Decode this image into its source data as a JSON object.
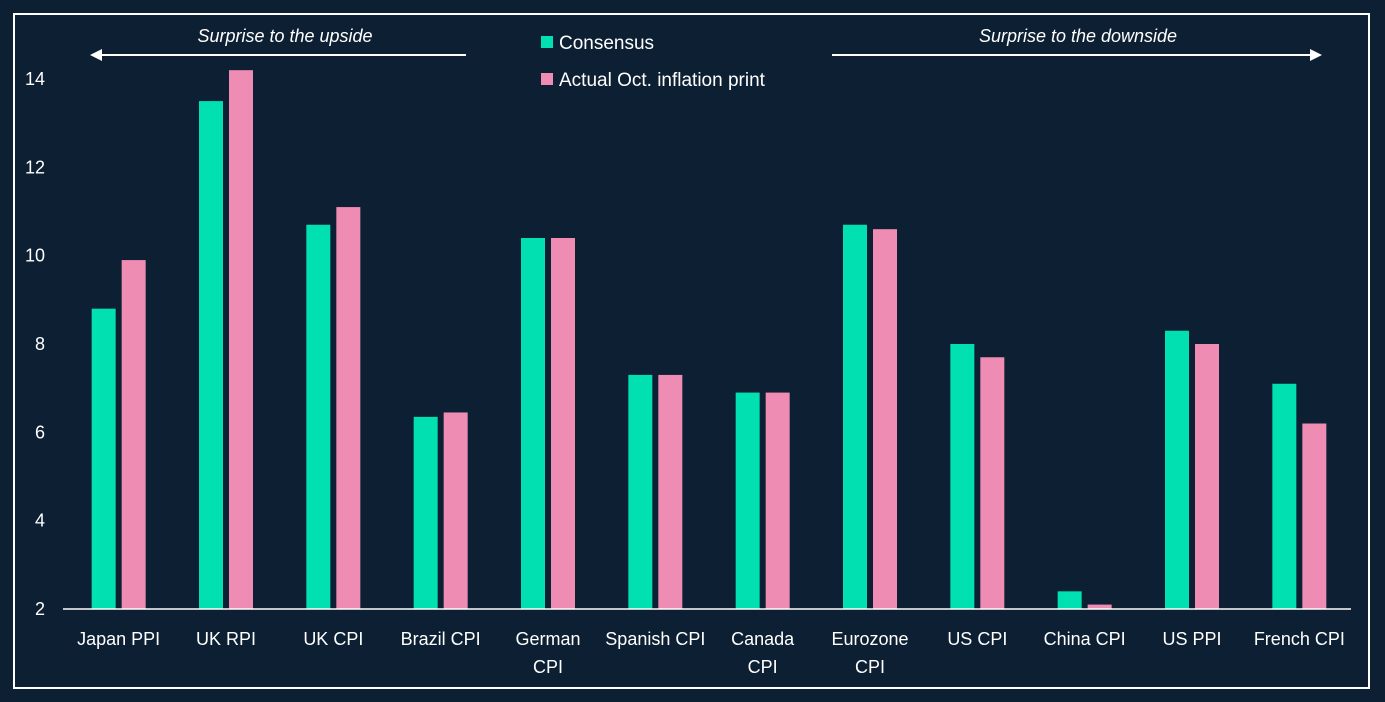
{
  "chart_data": {
    "type": "bar",
    "title": "",
    "xlabel": "",
    "ylabel": "",
    "ylim": [
      2,
      14.5
    ],
    "yticks": [
      2,
      4,
      6,
      8,
      10,
      12,
      14
    ],
    "categories": [
      [
        "Japan PPI"
      ],
      [
        "UK RPI"
      ],
      [
        "UK CPI"
      ],
      [
        "Brazil CPI"
      ],
      [
        "German",
        "CPI"
      ],
      [
        "Spanish CPI"
      ],
      [
        "Canada",
        "CPI"
      ],
      [
        "Eurozone",
        "CPI"
      ],
      [
        "US CPI"
      ],
      [
        "China CPI"
      ],
      [
        "US PPI"
      ],
      [
        "French CPI"
      ]
    ],
    "series": [
      {
        "name": "Consensus",
        "color": "#00e0b0",
        "values": [
          8.8,
          13.5,
          10.7,
          6.35,
          10.4,
          7.3,
          6.9,
          10.7,
          8.0,
          2.4,
          8.3,
          7.1
        ]
      },
      {
        "name": "Actual Oct. inflation print",
        "color": "#ee8cb4",
        "values": [
          9.9,
          14.2,
          11.1,
          6.45,
          10.4,
          7.3,
          6.9,
          10.6,
          7.7,
          2.1,
          8.0,
          6.2
        ]
      }
    ],
    "annotations": {
      "left": "Surprise to the upside",
      "right": "Surprise to the downside"
    },
    "legend_position": "top-center",
    "grid": false
  },
  "colors": {
    "background": "#0c1f33",
    "axis": "#ffffff",
    "text": "#ffffff"
  }
}
